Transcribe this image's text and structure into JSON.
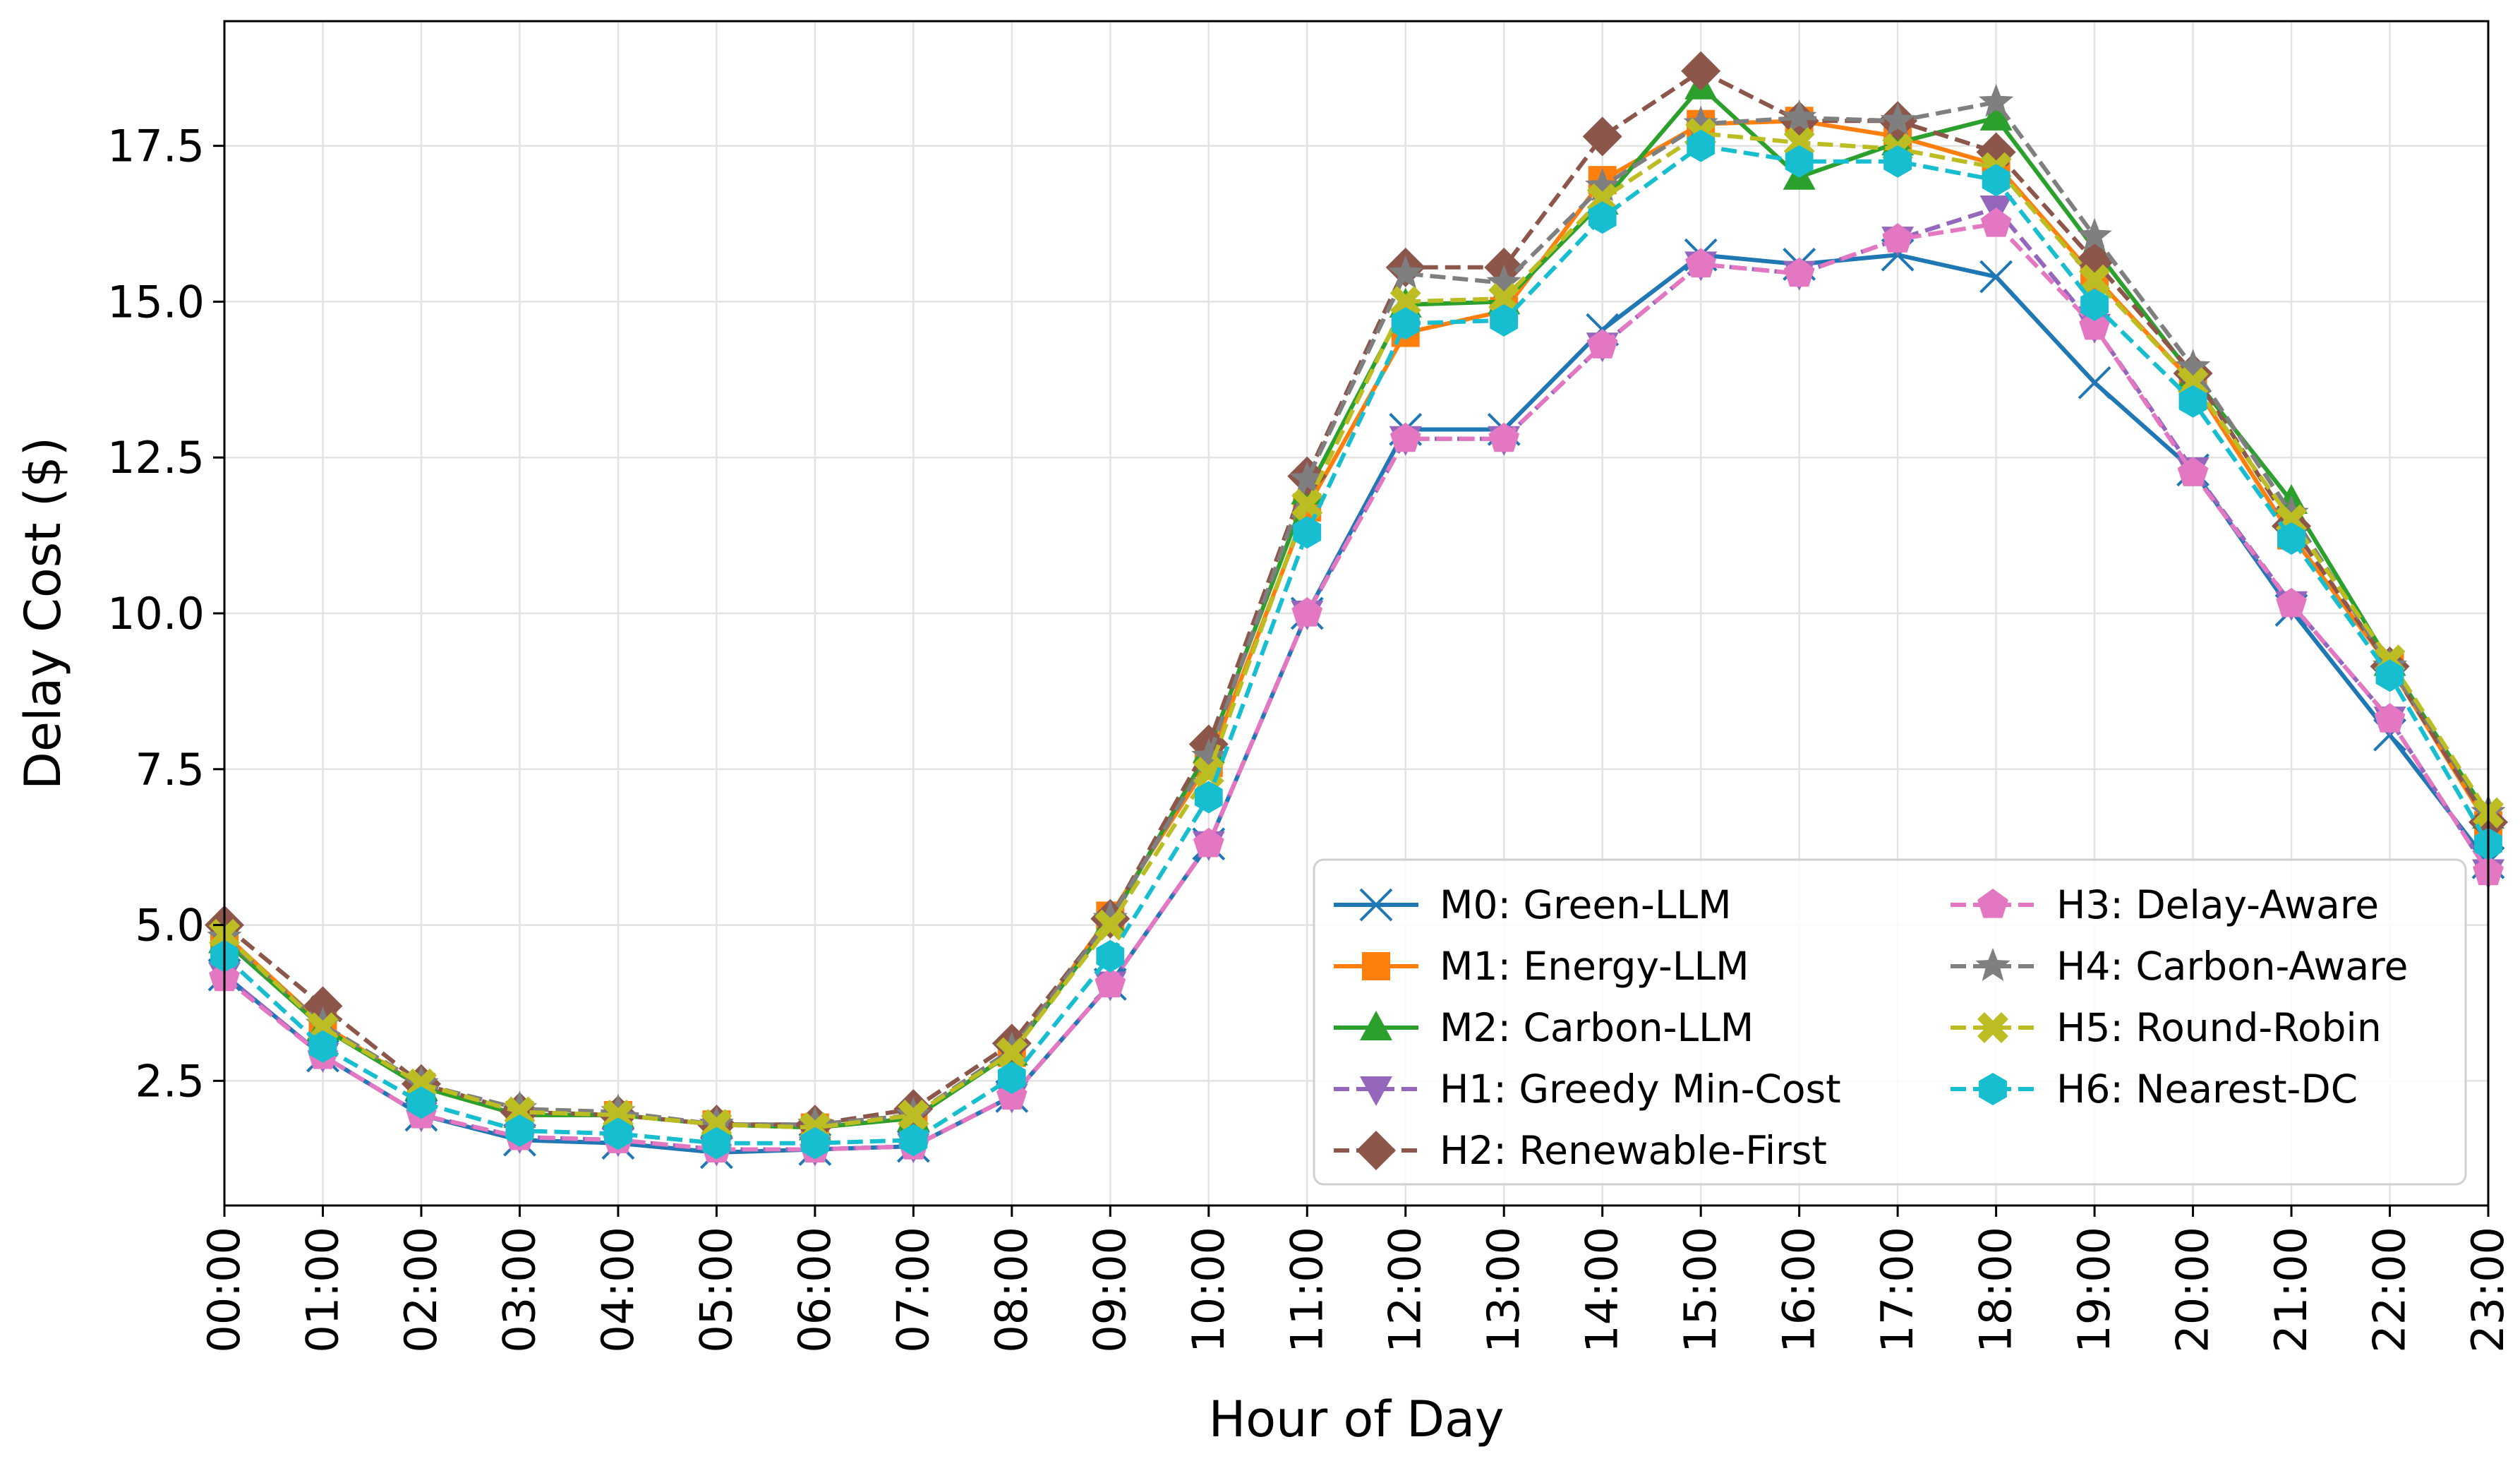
{
  "chart_data": {
    "type": "line",
    "title": "",
    "xlabel": "Hour of Day",
    "ylabel": "Delay Cost ($)",
    "categories": [
      "00:00",
      "01:00",
      "02:00",
      "03:00",
      "04:00",
      "05:00",
      "06:00",
      "07:00",
      "08:00",
      "09:00",
      "10:00",
      "11:00",
      "12:00",
      "13:00",
      "14:00",
      "15:00",
      "16:00",
      "17:00",
      "18:00",
      "19:00",
      "20:00",
      "21:00",
      "22:00",
      "23:00"
    ],
    "ylim": [
      0.5,
      19.5
    ],
    "yticks": [
      2.5,
      5.0,
      7.5,
      10.0,
      12.5,
      15.0,
      17.5
    ],
    "ytick_labels": [
      "2.5",
      "5.0",
      "7.5",
      "10.0",
      "12.5",
      "15.0",
      "17.5"
    ],
    "grid": true,
    "legend_position": "lower-right",
    "series": [
      {
        "name": "M0: Green-LLM",
        "color": "#1f77b4",
        "marker": "x",
        "dash": "solid",
        "values": [
          4.2,
          2.9,
          1.95,
          1.55,
          1.5,
          1.35,
          1.4,
          1.45,
          2.25,
          4.05,
          6.3,
          10.0,
          12.95,
          12.95,
          14.55,
          15.75,
          15.6,
          15.75,
          15.4,
          13.7,
          12.3,
          10.05,
          8.05,
          6.0
        ]
      },
      {
        "name": "M1: Energy-LLM",
        "color": "#ff7f0e",
        "marker": "square",
        "dash": "solid",
        "values": [
          4.85,
          3.4,
          2.4,
          1.95,
          1.95,
          1.8,
          1.75,
          1.9,
          2.95,
          5.15,
          7.6,
          11.7,
          14.5,
          14.85,
          16.95,
          17.85,
          17.9,
          17.65,
          17.2,
          15.4,
          13.7,
          11.25,
          9.15,
          6.6
        ]
      },
      {
        "name": "M2: Carbon-LLM",
        "color": "#2ca02c",
        "marker": "triangle-up",
        "dash": "solid",
        "values": [
          4.75,
          3.35,
          2.4,
          1.95,
          1.95,
          1.8,
          1.75,
          1.9,
          2.95,
          5.05,
          7.8,
          11.95,
          14.95,
          15.0,
          16.6,
          18.45,
          17.0,
          17.55,
          17.95,
          15.85,
          13.8,
          11.8,
          9.2,
          6.75
        ]
      },
      {
        "name": "H1: Greedy Min-Cost",
        "color": "#9467bd",
        "marker": "triangle-down",
        "dash": "dash",
        "values": [
          4.2,
          2.9,
          1.95,
          1.6,
          1.55,
          1.4,
          1.4,
          1.45,
          2.25,
          4.05,
          6.3,
          10.0,
          12.8,
          12.8,
          14.3,
          15.6,
          15.45,
          16.0,
          16.5,
          14.6,
          12.3,
          10.15,
          8.3,
          5.85
        ]
      },
      {
        "name": "H2: Renewable-First",
        "color": "#8c564b",
        "marker": "diamond",
        "dash": "dash",
        "values": [
          5.0,
          3.7,
          2.45,
          2.0,
          1.95,
          1.8,
          1.8,
          2.05,
          3.1,
          5.1,
          7.9,
          12.2,
          15.55,
          15.55,
          17.65,
          18.7,
          17.9,
          17.9,
          17.4,
          15.65,
          13.85,
          11.4,
          9.15,
          6.65
        ]
      },
      {
        "name": "H3: Delay-Aware",
        "color": "#e377c2",
        "marker": "pentagon",
        "dash": "dash",
        "values": [
          4.15,
          2.9,
          1.95,
          1.6,
          1.55,
          1.4,
          1.4,
          1.45,
          2.25,
          4.05,
          6.3,
          10.0,
          12.8,
          12.8,
          14.3,
          15.6,
          15.45,
          16.0,
          16.25,
          14.6,
          12.25,
          10.15,
          8.3,
          5.85
        ]
      },
      {
        "name": "H4: Carbon-Aware",
        "color": "#7f7f7f",
        "marker": "star",
        "dash": "dash",
        "values": [
          4.8,
          3.4,
          2.45,
          2.05,
          2.0,
          1.8,
          1.8,
          1.95,
          3.0,
          5.1,
          7.7,
          12.15,
          15.45,
          15.3,
          16.85,
          17.85,
          17.95,
          17.9,
          18.2,
          16.05,
          13.95,
          11.6,
          9.15,
          6.8
        ]
      },
      {
        "name": "H5: Round-Robin",
        "color": "#bcbd22",
        "marker": "plus-x",
        "dash": "dash",
        "values": [
          4.85,
          3.35,
          2.45,
          2.0,
          1.95,
          1.8,
          1.75,
          1.95,
          2.95,
          5.0,
          7.45,
          11.75,
          15.0,
          15.05,
          16.65,
          17.7,
          17.55,
          17.45,
          17.15,
          15.35,
          13.7,
          11.5,
          9.25,
          6.8
        ]
      },
      {
        "name": "H6: Nearest-DC",
        "color": "#17becf",
        "marker": "hexagon",
        "dash": "dash",
        "values": [
          4.5,
          3.05,
          2.15,
          1.7,
          1.65,
          1.5,
          1.5,
          1.55,
          2.55,
          4.5,
          7.05,
          11.3,
          14.65,
          14.7,
          16.35,
          17.5,
          17.25,
          17.25,
          16.95,
          14.95,
          13.4,
          11.2,
          9.0,
          6.3
        ]
      }
    ]
  }
}
